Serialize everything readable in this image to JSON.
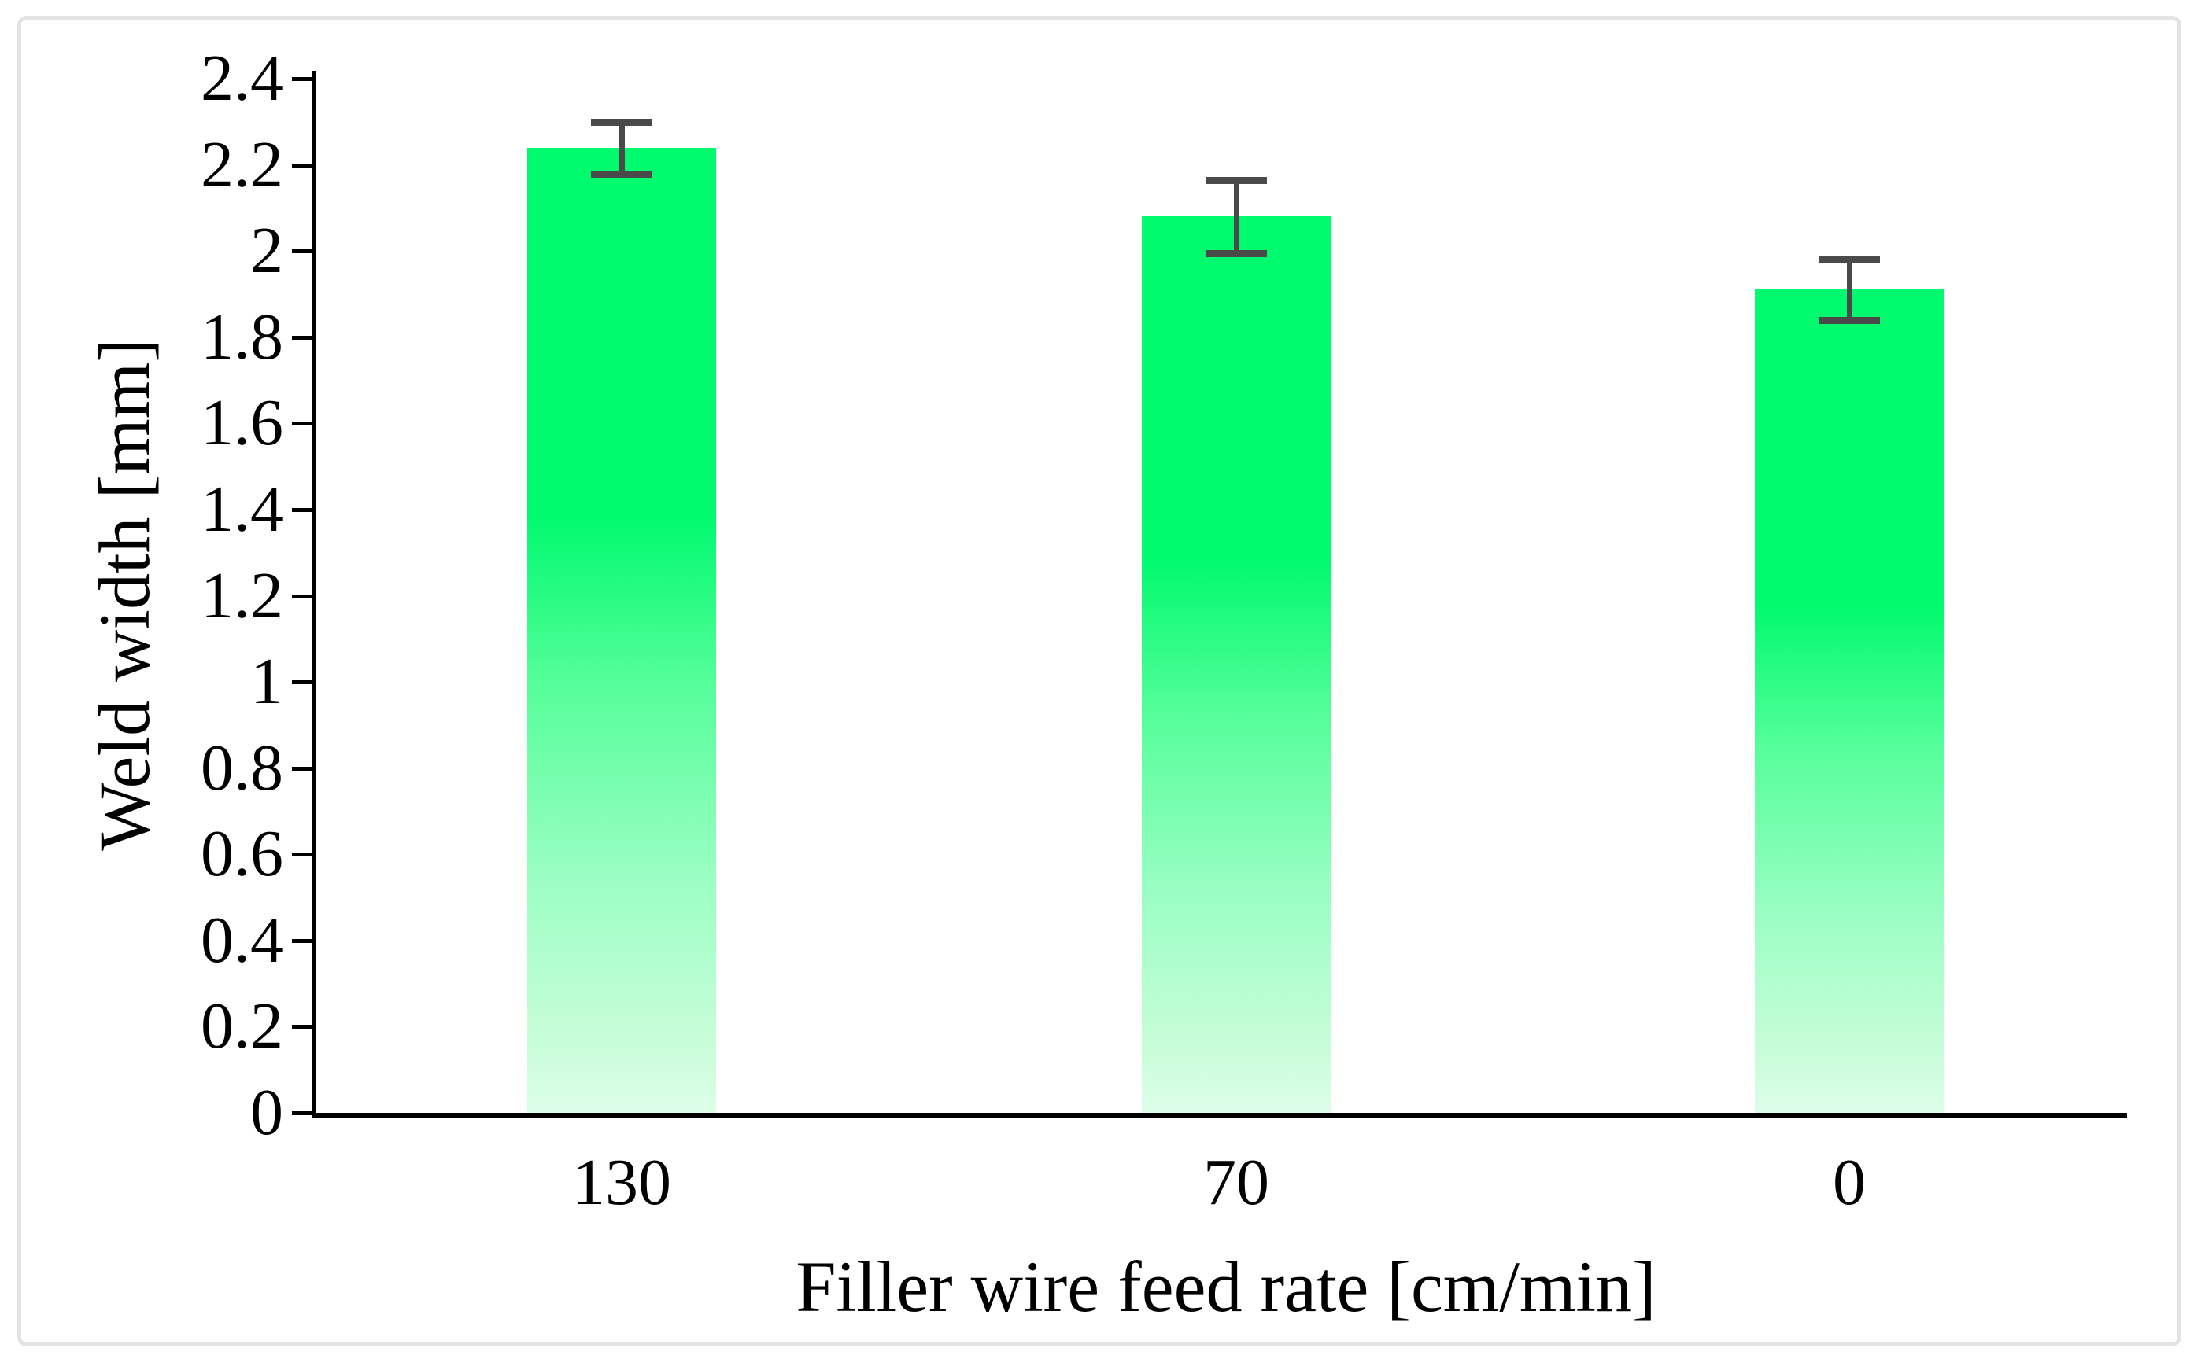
{
  "chart_data": {
    "type": "bar",
    "title": "",
    "xlabel": "Filler wire feed rate [cm/min]",
    "ylabel": "Weld width [mm]",
    "categories": [
      "130",
      "70",
      "0"
    ],
    "values": [
      2.24,
      2.08,
      1.91
    ],
    "errors": [
      0.06,
      0.085,
      0.07
    ],
    "ylim": [
      0,
      2.4
    ],
    "ytick_step": 0.2,
    "yticks": [
      "0",
      "0.2",
      "0.4",
      "0.6",
      "0.8",
      "1",
      "1.2",
      "1.4",
      "1.6",
      "1.8",
      "2",
      "2.2",
      "2.4"
    ],
    "grid": false,
    "legend": "none",
    "bar_gradient_top_color": "#00FA6E",
    "bar_gradient_bottom_color": "#DDFEE9",
    "error_bar_color": "#4A4A4A",
    "axis_color": "#000000",
    "frame_border_color": "#E3E3E3",
    "background_color": "#FFFFFF"
  }
}
